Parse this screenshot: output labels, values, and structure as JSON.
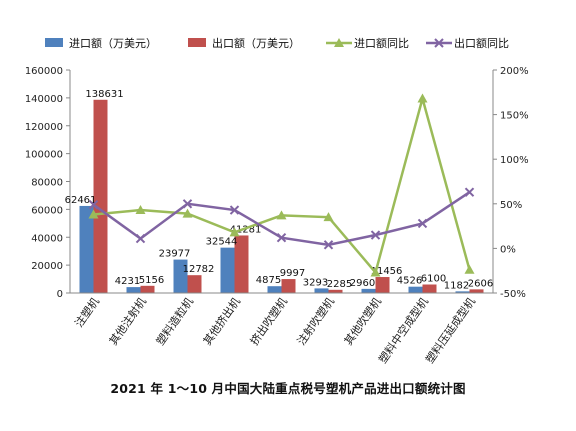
{
  "chart_data": {
    "type": "bar",
    "title": "2021年1～10月中国大陆重点税号塑机产品进出口额统计图",
    "categories": [
      "注塑机",
      "其他注射机",
      "塑料造粒机",
      "其他挤出机",
      "挤出吹塑机",
      "注射吹塑机",
      "其他吹塑机",
      "塑料中空成型机",
      "塑料压延成型机"
    ],
    "series": [
      {
        "name": "进口额（万美元）",
        "type": "bar",
        "axis": "left",
        "color": "#4f81bd",
        "values": [
          62461,
          4231,
          23977,
          32544,
          4875,
          3293,
          2960,
          4526,
          1182
        ],
        "labels": [
          "62461",
          "4231",
          "23977",
          "32544",
          "4875",
          "3293",
          "2960",
          "4526",
          "1182"
        ]
      },
      {
        "name": "出口额（万美元）",
        "type": "bar",
        "axis": "left",
        "color": "#c0504d",
        "values": [
          138631,
          5156,
          12782,
          41281,
          9997,
          2285,
          11456,
          6100,
          2606
        ],
        "labels": [
          "138631",
          "5156",
          "12782",
          "41281",
          "9997",
          "2285",
          "11456",
          "6100",
          "2606"
        ]
      },
      {
        "name": "进口额同比",
        "type": "line",
        "axis": "right",
        "color": "#9bbb59",
        "marker": "triangle",
        "values": [
          38,
          43,
          39,
          18,
          37,
          35,
          -27,
          168,
          -24
        ]
      },
      {
        "name": "出口额同比",
        "type": "line",
        "axis": "right",
        "color": "#8064a2",
        "marker": "x",
        "values": [
          49,
          11,
          50,
          43,
          12,
          4,
          15,
          28,
          63
        ]
      }
    ],
    "y_left": {
      "min": 0,
      "max": 160000,
      "step": 20000,
      "ticks": [
        "0",
        "20000",
        "40000",
        "60000",
        "80000",
        "100000",
        "120000",
        "140000",
        "160000"
      ]
    },
    "y_right": {
      "min": -50,
      "max": 200,
      "step": 50,
      "ticks": [
        "-50%",
        "0%",
        "50%",
        "100%",
        "150%",
        "200%"
      ]
    },
    "legend": "top",
    "grid": false
  },
  "caption": "2021 年 1～10 月中国大陆重点税号塑机产品进出口额统计图"
}
